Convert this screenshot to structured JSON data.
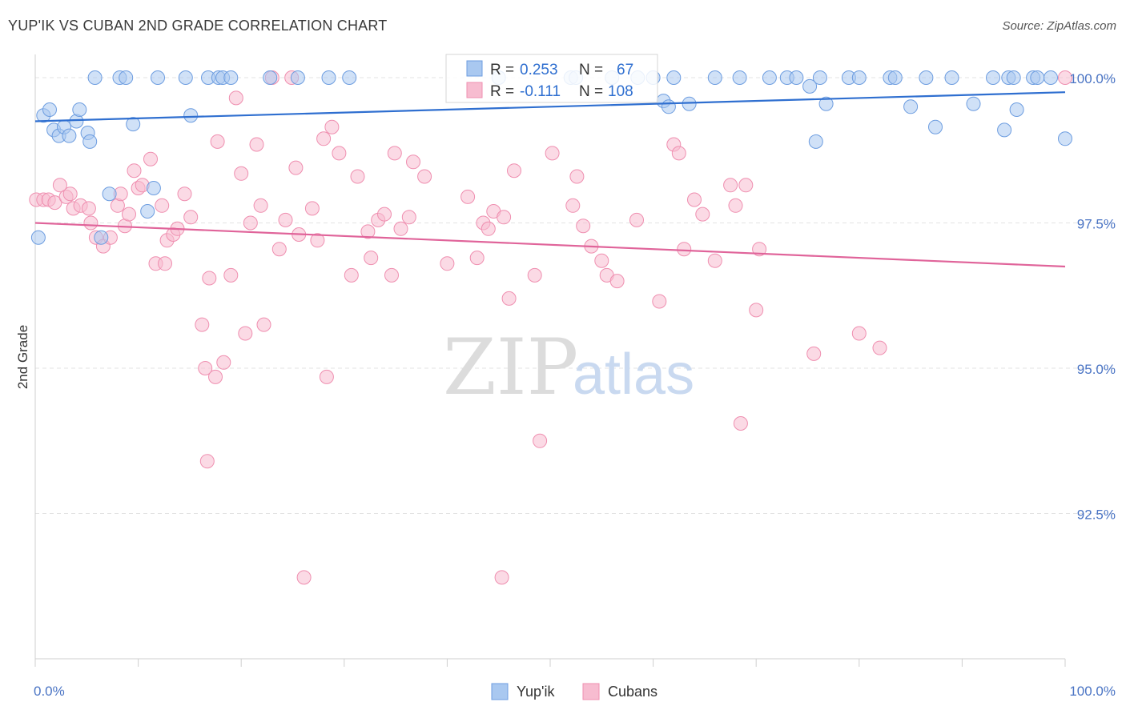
{
  "title": "YUP'IK VS CUBAN 2ND GRADE CORRELATION CHART",
  "source": "Source: ZipAtlas.com",
  "watermark": {
    "part1": "ZIP",
    "part2": "atlas"
  },
  "legend_box": {
    "rows": [
      {
        "r_label": "R =",
        "r_value": "0.253",
        "n_label": "N =",
        "n_value": "67",
        "series": "Yup'ik"
      },
      {
        "r_label": "R =",
        "r_value": "-0.111",
        "n_label": "N =",
        "n_value": "108",
        "series": "Cubans"
      }
    ]
  },
  "colors": {
    "yupik_fill": "#a9c8f0",
    "yupik_stroke": "#6d9de0",
    "yupik_line": "#2f6fd0",
    "cuban_fill": "#f7bcd0",
    "cuban_stroke": "#ef8fb0",
    "cuban_line": "#e0649a",
    "grid": "#e3e3e3",
    "tick_text": "#4a74c4"
  },
  "chart_data": {
    "type": "scatter",
    "title": "YUP'IK VS CUBAN 2ND GRADE CORRELATION CHART",
    "xlabel": "",
    "ylabel": "2nd Grade",
    "xlim": [
      0,
      100
    ],
    "ylim": [
      90.0,
      100.4
    ],
    "x_tick_labels": [
      "0.0%",
      "100.0%"
    ],
    "y_ticks": [
      92.5,
      95.0,
      97.5,
      100.0
    ],
    "y_tick_labels": [
      "92.5%",
      "95.0%",
      "97.5%",
      "100.0%"
    ],
    "grid": true,
    "legend_position": "bottom-center",
    "series": [
      {
        "name": "Yup'ik",
        "trend": {
          "x": [
            0,
            100
          ],
          "y": [
            99.25,
            99.75
          ]
        },
        "points": [
          [
            0.3,
            97.25
          ],
          [
            0.8,
            99.35
          ],
          [
            1.4,
            99.45
          ],
          [
            1.8,
            99.1
          ],
          [
            2.3,
            99.0
          ],
          [
            2.8,
            99.15
          ],
          [
            3.3,
            99.0
          ],
          [
            4.0,
            99.25
          ],
          [
            4.3,
            99.45
          ],
          [
            5.1,
            99.05
          ],
          [
            5.3,
            98.9
          ],
          [
            6.4,
            97.25
          ],
          [
            7.2,
            98.0
          ],
          [
            9.5,
            99.2
          ],
          [
            10.9,
            97.7
          ],
          [
            11.5,
            98.1
          ],
          [
            15.1,
            99.35
          ],
          [
            5.8,
            100.0
          ],
          [
            8.2,
            100.0
          ],
          [
            8.8,
            100.0
          ],
          [
            11.9,
            100.0
          ],
          [
            14.6,
            100.0
          ],
          [
            16.8,
            100.0
          ],
          [
            17.8,
            100.0
          ],
          [
            18.2,
            100.0
          ],
          [
            19.0,
            100.0
          ],
          [
            22.8,
            100.0
          ],
          [
            25.5,
            100.0
          ],
          [
            28.5,
            100.0
          ],
          [
            30.5,
            100.0
          ],
          [
            45.0,
            100.0
          ],
          [
            52.0,
            100.0
          ],
          [
            52.5,
            100.0
          ],
          [
            56.0,
            100.0
          ],
          [
            58.5,
            100.0
          ],
          [
            60.0,
            100.0
          ],
          [
            62.0,
            100.0
          ],
          [
            66.0,
            100.0
          ],
          [
            61.0,
            99.6
          ],
          [
            61.5,
            99.5
          ],
          [
            63.5,
            99.55
          ],
          [
            68.4,
            100.0
          ],
          [
            71.3,
            100.0
          ],
          [
            73.0,
            100.0
          ],
          [
            73.9,
            100.0
          ],
          [
            75.2,
            99.85
          ],
          [
            76.2,
            100.0
          ],
          [
            75.8,
            98.9
          ],
          [
            79.0,
            100.0
          ],
          [
            80.0,
            100.0
          ],
          [
            76.8,
            99.55
          ],
          [
            83.0,
            100.0
          ],
          [
            83.5,
            100.0
          ],
          [
            86.5,
            100.0
          ],
          [
            89.0,
            100.0
          ],
          [
            85.0,
            99.5
          ],
          [
            87.4,
            99.15
          ],
          [
            93.0,
            100.0
          ],
          [
            94.5,
            100.0
          ],
          [
            95.0,
            100.0
          ],
          [
            96.9,
            100.0
          ],
          [
            97.3,
            100.0
          ],
          [
            98.6,
            100.0
          ],
          [
            100.0,
            98.95
          ],
          [
            91.1,
            99.55
          ],
          [
            94.1,
            99.1
          ],
          [
            95.3,
            99.45
          ]
        ]
      },
      {
        "name": "Cubans",
        "trend": {
          "x": [
            0,
            100
          ],
          "y": [
            97.5,
            96.75
          ]
        },
        "points": [
          [
            0.1,
            97.9
          ],
          [
            0.8,
            97.9
          ],
          [
            1.3,
            97.9
          ],
          [
            1.9,
            97.85
          ],
          [
            2.4,
            98.15
          ],
          [
            3.0,
            97.95
          ],
          [
            3.4,
            98.0
          ],
          [
            3.7,
            97.75
          ],
          [
            4.4,
            97.8
          ],
          [
            5.2,
            97.75
          ],
          [
            5.4,
            97.5
          ],
          [
            5.9,
            97.25
          ],
          [
            6.6,
            97.1
          ],
          [
            7.3,
            97.25
          ],
          [
            8.0,
            97.8
          ],
          [
            8.3,
            98.0
          ],
          [
            8.7,
            97.45
          ],
          [
            9.1,
            97.65
          ],
          [
            9.6,
            98.4
          ],
          [
            10.0,
            98.1
          ],
          [
            10.4,
            98.15
          ],
          [
            11.2,
            98.6
          ],
          [
            11.7,
            96.8
          ],
          [
            12.3,
            97.8
          ],
          [
            12.6,
            96.8
          ],
          [
            12.8,
            97.2
          ],
          [
            13.4,
            97.3
          ],
          [
            13.8,
            97.4
          ],
          [
            14.5,
            98.0
          ],
          [
            15.1,
            97.6
          ],
          [
            16.2,
            95.75
          ],
          [
            16.5,
            95.0
          ],
          [
            16.7,
            93.4
          ],
          [
            16.9,
            96.55
          ],
          [
            17.5,
            94.85
          ],
          [
            17.7,
            98.9
          ],
          [
            18.3,
            95.1
          ],
          [
            19.0,
            96.6
          ],
          [
            19.5,
            99.65
          ],
          [
            20.0,
            98.35
          ],
          [
            20.4,
            95.6
          ],
          [
            20.9,
            97.5
          ],
          [
            21.5,
            98.85
          ],
          [
            21.9,
            97.8
          ],
          [
            22.2,
            95.75
          ],
          [
            23.0,
            100.0
          ],
          [
            23.7,
            97.05
          ],
          [
            24.3,
            97.55
          ],
          [
            24.9,
            100.0
          ],
          [
            25.3,
            98.45
          ],
          [
            25.6,
            97.3
          ],
          [
            26.1,
            91.4
          ],
          [
            26.9,
            97.75
          ],
          [
            27.4,
            97.2
          ],
          [
            28.0,
            98.95
          ],
          [
            28.3,
            94.85
          ],
          [
            28.8,
            99.15
          ],
          [
            29.5,
            98.7
          ],
          [
            30.7,
            96.6
          ],
          [
            31.3,
            98.3
          ],
          [
            32.3,
            97.35
          ],
          [
            32.6,
            96.9
          ],
          [
            33.3,
            97.55
          ],
          [
            33.9,
            97.65
          ],
          [
            34.6,
            96.6
          ],
          [
            34.9,
            98.7
          ],
          [
            35.5,
            97.4
          ],
          [
            36.3,
            97.6
          ],
          [
            36.7,
            98.55
          ],
          [
            37.8,
            98.3
          ],
          [
            40.0,
            96.8
          ],
          [
            42.0,
            97.95
          ],
          [
            42.9,
            96.9
          ],
          [
            43.5,
            97.5
          ],
          [
            44.0,
            97.4
          ],
          [
            44.5,
            97.7
          ],
          [
            45.3,
            91.4
          ],
          [
            45.5,
            97.6
          ],
          [
            46.0,
            96.2
          ],
          [
            46.5,
            98.4
          ],
          [
            48.5,
            96.6
          ],
          [
            49.0,
            93.75
          ],
          [
            50.2,
            98.7
          ],
          [
            52.2,
            97.8
          ],
          [
            52.6,
            98.3
          ],
          [
            53.2,
            97.45
          ],
          [
            54.0,
            97.1
          ],
          [
            55.0,
            96.85
          ],
          [
            55.5,
            96.6
          ],
          [
            56.5,
            96.5
          ],
          [
            58.4,
            97.55
          ],
          [
            60.6,
            96.15
          ],
          [
            62.0,
            98.85
          ],
          [
            62.5,
            98.7
          ],
          [
            63.0,
            97.05
          ],
          [
            64.0,
            97.9
          ],
          [
            64.8,
            97.65
          ],
          [
            66.0,
            96.85
          ],
          [
            67.5,
            98.15
          ],
          [
            68.0,
            97.8
          ],
          [
            68.5,
            94.05
          ],
          [
            69.0,
            98.15
          ],
          [
            70.0,
            96.0
          ],
          [
            70.3,
            97.05
          ],
          [
            75.6,
            95.25
          ],
          [
            80.0,
            95.6
          ],
          [
            82.0,
            95.35
          ],
          [
            100.0,
            100.0
          ]
        ]
      }
    ]
  }
}
